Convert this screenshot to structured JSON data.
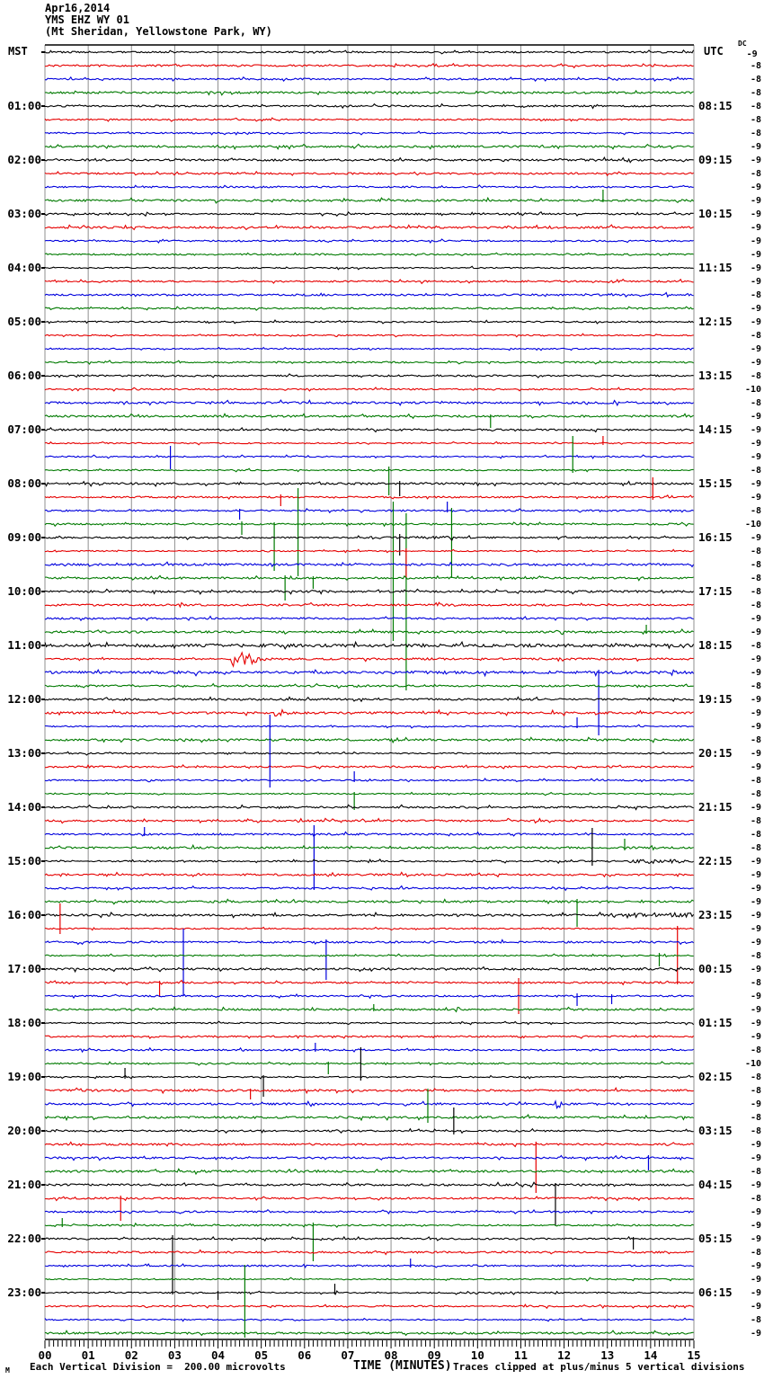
{
  "header": {
    "date": "Apr16,2014",
    "station": "YMS EHZ WY 01",
    "location": "(Mt Sheridan, Yellowstone Park, WY)"
  },
  "axes": {
    "left_tz": "MST",
    "right_tz": "UTC",
    "dc_prefix": "DC",
    "x_axis_title": "TIME (MINUTES)"
  },
  "footer": {
    "left_note": "Each Vertical Division =  200.00 microvolts",
    "right_note": "Traces clipped at plus/minus 5 vertical divisions",
    "corner_glyph": "M"
  },
  "chart_data": {
    "type": "line",
    "subtype": "helicorder-seismogram",
    "title": "YMS EHZ WY 01 (Mt Sheridan, Yellowstone Park, WY) Apr16,2014",
    "xlabel": "TIME (MINUTES)",
    "x_range_minutes": [
      0,
      15
    ],
    "x_tick_labels": [
      "00",
      "01",
      "02",
      "03",
      "04",
      "05",
      "06",
      "07",
      "08",
      "09",
      "10",
      "11",
      "12",
      "13",
      "14",
      "15"
    ],
    "minutes_per_row": 15,
    "rows_per_hour": 4,
    "row_count": 96,
    "grid": "vertical-minute-lines",
    "division_microvolts": 200.0,
    "clip_divisions": 5,
    "trace_color_cycle": [
      "#000000",
      "#e60000",
      "#0000dd",
      "#007a00"
    ],
    "grid_color": "#8f8f8f",
    "left_hour_labels": [
      "01:00",
      "02:00",
      "03:00",
      "04:00",
      "05:00",
      "06:00",
      "07:00",
      "08:00",
      "09:00",
      "10:00",
      "11:00",
      "12:00",
      "13:00",
      "14:00",
      "15:00",
      "16:00",
      "17:00",
      "18:00",
      "19:00",
      "20:00",
      "21:00",
      "22:00",
      "23:00"
    ],
    "right_hour_labels": [
      "08:15",
      "09:15",
      "10:15",
      "11:15",
      "12:15",
      "13:15",
      "14:15",
      "15:15",
      "16:15",
      "17:15",
      "18:15",
      "19:15",
      "20:15",
      "21:15",
      "22:15",
      "23:15",
      "00:15",
      "01:15",
      "02:15",
      "03:15",
      "04:15",
      "05:15",
      "06:15"
    ],
    "dc_offsets": [
      -9,
      -8,
      -8,
      -8,
      -8,
      -8,
      -8,
      -9,
      -9,
      -8,
      -9,
      -9,
      -9,
      -9,
      -9,
      -9,
      -9,
      -9,
      -8,
      -9,
      -9,
      -8,
      -9,
      -9,
      -8,
      -10,
      -8,
      -9,
      -9,
      -9,
      -9,
      -8,
      -9,
      -9,
      -8,
      -10,
      -9,
      -8,
      -8,
      -8,
      -8,
      -8,
      -9,
      -9,
      -8,
      -9,
      -9,
      -8,
      -9,
      -9,
      -9,
      -8,
      -9,
      -9,
      -8,
      -8,
      -9,
      -8,
      -8,
      -8,
      -9,
      -9,
      -9,
      -9,
      -9,
      -9,
      -9,
      -8,
      -9,
      -8,
      -9,
      -9,
      -9,
      -9,
      -8,
      -10,
      -8,
      -8,
      -9,
      -8,
      -8,
      -9,
      -9,
      -8,
      -9,
      -8,
      -9,
      -9,
      -9,
      -8,
      -9,
      -9,
      -9,
      -9,
      -8,
      -9
    ],
    "noise_seed": 20140416,
    "spike_events": [
      {
        "row": 11,
        "min": 12.9,
        "up": 12,
        "down": 2
      },
      {
        "row": 27,
        "min": 10.3,
        "up": 2,
        "down": 13
      },
      {
        "row": 29,
        "min": 12.9,
        "up": 8,
        "down": 2
      },
      {
        "row": 30,
        "min": 2.9,
        "up": 12,
        "down": 14
      },
      {
        "row": 31,
        "min": 7.95,
        "up": 4,
        "down": 28
      },
      {
        "row": 31,
        "min": 12.2,
        "up": 38,
        "down": 3
      },
      {
        "row": 32,
        "min": 8.2,
        "up": 3,
        "down": 14
      },
      {
        "row": 33,
        "min": 5.45,
        "up": 3,
        "down": 10
      },
      {
        "row": 33,
        "min": 14.05,
        "up": 22,
        "down": 3
      },
      {
        "row": 34,
        "min": 4.5,
        "up": 2,
        "down": 10
      },
      {
        "row": 34,
        "min": 9.3,
        "up": 10,
        "down": 2
      },
      {
        "row": 35,
        "min": 4.55,
        "up": 3,
        "down": 12
      },
      {
        "row": 35,
        "min": 5.3,
        "up": 2,
        "down": 52
      },
      {
        "row": 35,
        "min": 5.85,
        "up": 40,
        "down": 58
      },
      {
        "row": 35,
        "min": 8.05,
        "up": 25,
        "down": 130
      },
      {
        "row": 35,
        "min": 8.35,
        "up": 12,
        "down": 185
      },
      {
        "row": 35,
        "min": 9.4,
        "up": 18,
        "down": 60
      },
      {
        "row": 36,
        "min": 8.2,
        "up": 4,
        "down": 20
      },
      {
        "row": 37,
        "min": 8.35,
        "up": 3,
        "down": 30
      },
      {
        "row": 39,
        "min": 5.55,
        "up": 3,
        "down": 25
      },
      {
        "row": 39,
        "min": 6.2,
        "up": 2,
        "down": 12
      },
      {
        "row": 43,
        "min": 13.9,
        "up": 8,
        "down": 2
      },
      {
        "row": 46,
        "min": 12.8,
        "up": 3,
        "down": 70
      },
      {
        "row": 50,
        "min": 12.3,
        "up": 10,
        "down": 2
      },
      {
        "row": 54,
        "min": 5.2,
        "up": 73,
        "down": 8
      },
      {
        "row": 54,
        "min": 7.15,
        "up": 10,
        "down": 2
      },
      {
        "row": 55,
        "min": 7.15,
        "up": 2,
        "down": 18
      },
      {
        "row": 58,
        "min": 2.3,
        "up": 8,
        "down": 2
      },
      {
        "row": 58,
        "min": 6.22,
        "up": 10,
        "down": 62
      },
      {
        "row": 59,
        "min": 13.4,
        "up": 10,
        "down": 3
      },
      {
        "row": 60,
        "min": 12.65,
        "up": 37,
        "down": 5
      },
      {
        "row": 63,
        "min": 12.3,
        "up": 3,
        "down": 28
      },
      {
        "row": 65,
        "min": 0.35,
        "up": 28,
        "down": 6
      },
      {
        "row": 65,
        "min": 14.62,
        "up": 3,
        "down": 62
      },
      {
        "row": 66,
        "min": 3.2,
        "up": 15,
        "down": 60
      },
      {
        "row": 66,
        "min": 6.5,
        "up": 3,
        "down": 42
      },
      {
        "row": 67,
        "min": 14.2,
        "up": 3,
        "down": 12
      },
      {
        "row": 69,
        "min": 2.65,
        "up": 2,
        "down": 16
      },
      {
        "row": 69,
        "min": 10.95,
        "up": 5,
        "down": 35
      },
      {
        "row": 70,
        "min": 12.3,
        "up": 3,
        "down": 11
      },
      {
        "row": 70,
        "min": 13.1,
        "up": 2,
        "down": 9
      },
      {
        "row": 71,
        "min": 7.6,
        "up": 6,
        "down": 2
      },
      {
        "row": 74,
        "min": 6.25,
        "up": 8,
        "down": 2
      },
      {
        "row": 75,
        "min": 6.55,
        "up": 2,
        "down": 12
      },
      {
        "row": 76,
        "min": 1.85,
        "up": 10,
        "down": 2
      },
      {
        "row": 76,
        "min": 5.05,
        "up": 2,
        "down": 22
      },
      {
        "row": 76,
        "min": 7.3,
        "up": 33,
        "down": 4
      },
      {
        "row": 77,
        "min": 4.75,
        "up": 2,
        "down": 10
      },
      {
        "row": 79,
        "min": 8.85,
        "up": 32,
        "down": 6
      },
      {
        "row": 80,
        "min": 9.45,
        "up": 26,
        "down": 4
      },
      {
        "row": 81,
        "min": 11.35,
        "up": 3,
        "down": 54
      },
      {
        "row": 82,
        "min": 13.95,
        "up": 3,
        "down": 14
      },
      {
        "row": 84,
        "min": 11.8,
        "up": 2,
        "down": 45
      },
      {
        "row": 85,
        "min": 1.75,
        "up": 3,
        "down": 25
      },
      {
        "row": 87,
        "min": 0.4,
        "up": 8,
        "down": 2
      },
      {
        "row": 87,
        "min": 6.2,
        "up": 3,
        "down": 40
      },
      {
        "row": 88,
        "min": 2.95,
        "up": 4,
        "down": 62
      },
      {
        "row": 88,
        "min": 13.6,
        "up": 2,
        "down": 12
      },
      {
        "row": 90,
        "min": 8.45,
        "up": 8,
        "down": 2
      },
      {
        "row": 92,
        "min": 4,
        "up": 2,
        "down": 8
      },
      {
        "row": 92,
        "min": 6.7,
        "up": 10,
        "down": 2
      },
      {
        "row": 95,
        "min": 4.62,
        "up": 76,
        "down": 5
      }
    ],
    "burst_events": [
      {
        "row": 45,
        "min": 4.3,
        "dur": 0.9,
        "gain": 12
      },
      {
        "row": 49,
        "min": 5.3,
        "dur": 0.4,
        "gain": 5
      },
      {
        "row": 78,
        "min": 11.8,
        "dur": 0.35,
        "gain": 5
      }
    ],
    "noisy_segments": [
      {
        "row": 36,
        "from": 7.5,
        "to": 9.5,
        "gain": 1.8
      },
      {
        "row": 44,
        "from": 0,
        "to": 15,
        "gain": 1.5
      },
      {
        "row": 45,
        "from": 5.2,
        "to": 15,
        "gain": 1.3
      },
      {
        "row": 46,
        "from": 0,
        "to": 15,
        "gain": 1.7
      },
      {
        "row": 60,
        "from": 13.5,
        "to": 15,
        "gain": 2.4
      },
      {
        "row": 64,
        "from": 13,
        "to": 15,
        "gain": 2.2
      }
    ]
  }
}
